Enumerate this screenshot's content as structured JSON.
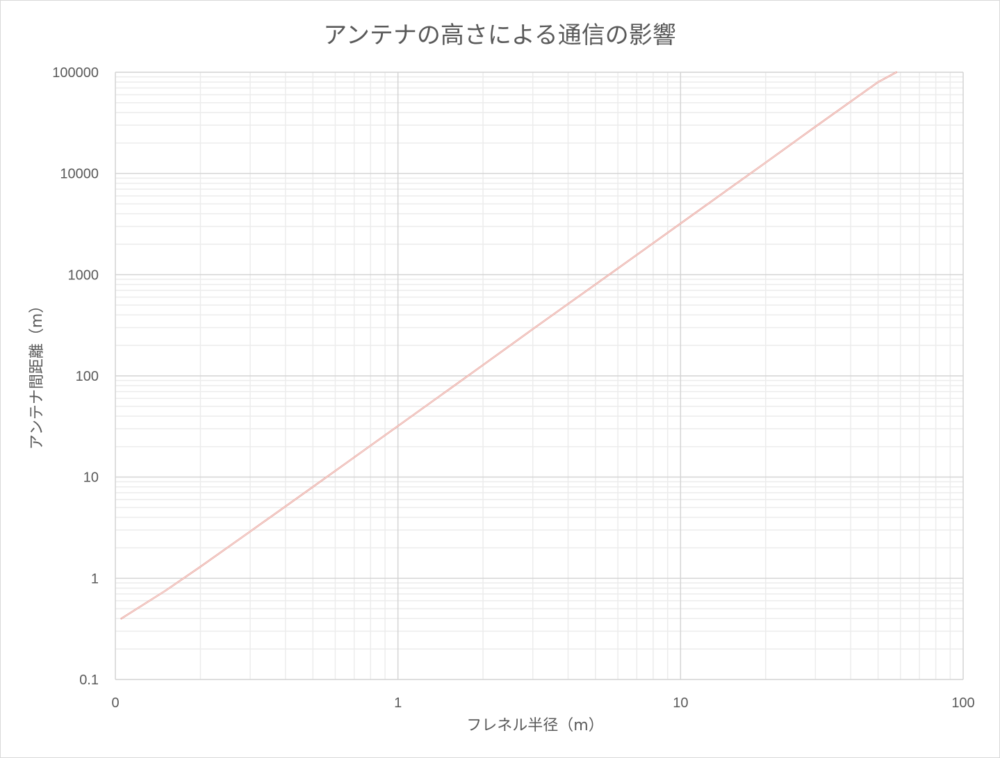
{
  "chart_data": {
    "type": "line",
    "title": "アンテナの高さによる通信の影響",
    "xlabel": "フレネル半径（m）",
    "ylabel": "アンテナ間距離（m）",
    "x_scale": "log",
    "y_scale": "log",
    "xlim": [
      0.1,
      100
    ],
    "ylim": [
      0.1,
      100000
    ],
    "x_tick_labels": [
      "0",
      "1",
      "10",
      "100"
    ],
    "y_tick_labels": [
      "0.1",
      "1",
      "10",
      "100",
      "1000",
      "10000",
      "100000"
    ],
    "grid": true,
    "legend": "none",
    "series": [
      {
        "color": "#e8a29a",
        "x": [
          0.105,
          0.15,
          0.2,
          0.3,
          0.5,
          0.75,
          1,
          1.5,
          2,
          3,
          5,
          7.5,
          10,
          15,
          20,
          30,
          50,
          58
        ],
        "y": [
          0.4,
          0.75,
          1.3,
          2.9,
          8,
          18,
          32,
          72,
          128,
          290,
          800,
          1800,
          3200,
          7200,
          12800,
          29000,
          80000,
          100000
        ]
      }
    ]
  }
}
